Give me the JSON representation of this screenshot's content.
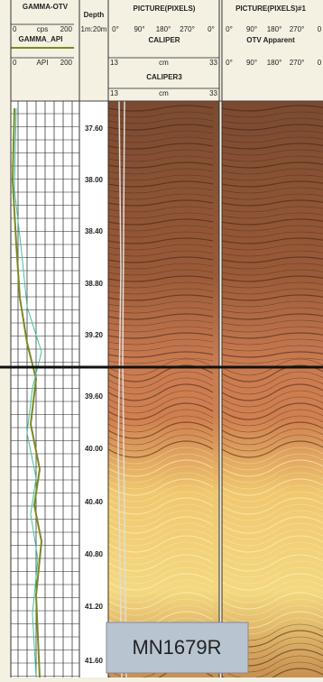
{
  "header": {
    "gamma_otv": {
      "title": "GAMMA-OTV",
      "min": "0",
      "unit": "cps",
      "max": "200"
    },
    "gamma_api": {
      "title": "GAMMA_API",
      "min": "0",
      "unit": "API",
      "max": "200"
    },
    "depth": {
      "title": "Depth",
      "scale": "1m:20m"
    },
    "picture": {
      "title": "PICTURE(PIXELS)",
      "azimuths": [
        "0°",
        "90°",
        "180°",
        "270°",
        "0°"
      ]
    },
    "caliper": {
      "title": "CALIPER",
      "min": "13",
      "unit": "cm",
      "max": "33"
    },
    "caliper3": {
      "title": "CALIPER3",
      "min": "13",
      "unit": "cm",
      "max": "33"
    },
    "picture1": {
      "title": "PICTURE(PIXELS)#1",
      "azimuths": [
        "0°",
        "90°",
        "180°",
        "270°",
        "0"
      ]
    },
    "otv": {
      "title": "OTV Apparent",
      "azimuths": [
        "0°",
        "90°",
        "180°",
        "270°",
        "0"
      ]
    }
  },
  "depths": [
    "37.60",
    "38.00",
    "38.40",
    "38.80",
    "39.20",
    "39.60",
    "40.00",
    "40.40",
    "40.80",
    "41.20",
    "41.60"
  ],
  "label": "MN1679R"
}
